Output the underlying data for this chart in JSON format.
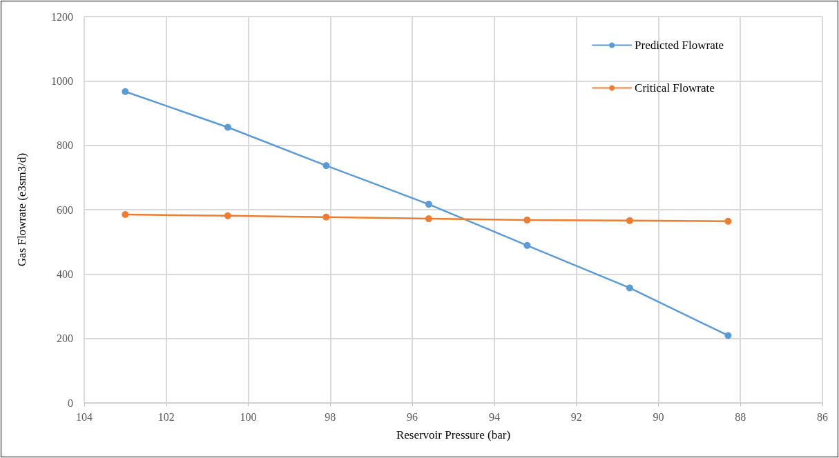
{
  "chart_data": {
    "type": "line",
    "xlabel": "Reservoir Pressure (bar)",
    "ylabel": "Gas Flowrate (e3sm3/d)",
    "x": [
      103.0,
      100.5,
      98.1,
      95.6,
      93.2,
      90.7,
      88.3
    ],
    "series": [
      {
        "name": "Predicted Flowrate",
        "color": "#5b9bd5",
        "values": [
          967,
          856,
          737,
          617,
          489,
          357,
          209
        ]
      },
      {
        "name": "Critical Flowrate",
        "color": "#ed7d31",
        "values": [
          585,
          581,
          577,
          572,
          568,
          566,
          564
        ]
      }
    ],
    "xlim": [
      104,
      86
    ],
    "xticks": [
      104,
      102,
      100,
      98,
      96,
      94,
      92,
      90,
      88,
      86
    ],
    "ylim": [
      0,
      1200
    ],
    "yticks": [
      0,
      200,
      400,
      600,
      800,
      1000,
      1200
    ],
    "grid": true,
    "legend": "top right",
    "marker": "circle",
    "line_style": "solid"
  }
}
